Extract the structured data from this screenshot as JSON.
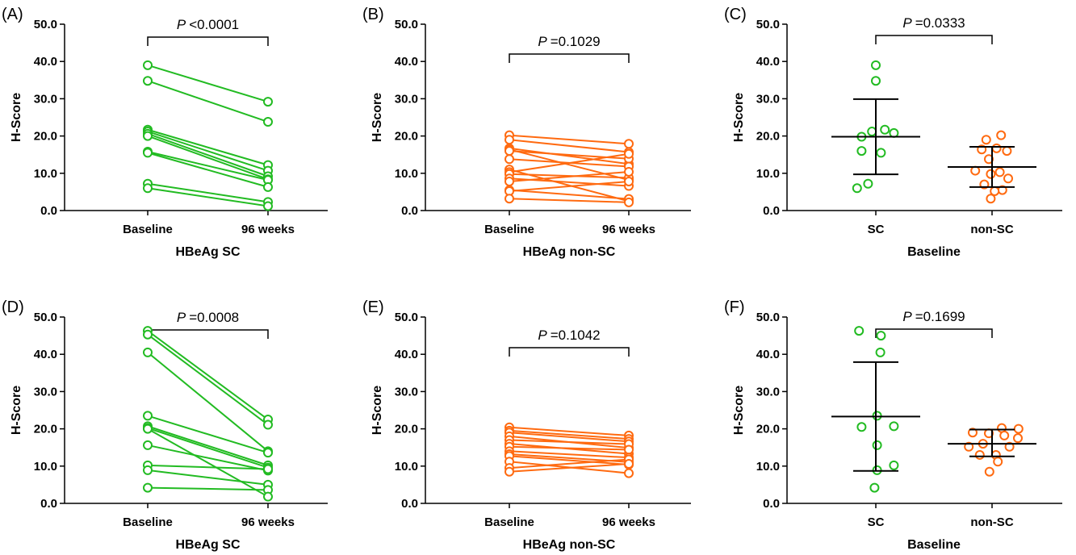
{
  "colors": {
    "sc": "#22bb22",
    "nonsc": "#ff6a10",
    "axis": "#000000"
  },
  "chart_data": [
    {
      "panel": "(A)",
      "type": "paired-line",
      "ylabel": "H-Score",
      "xlabel": "HBeAg SC",
      "ylim": [
        0,
        50
      ],
      "yticks": [
        "0.0",
        "10.0",
        "20.0",
        "30.0",
        "40.0",
        "50.0"
      ],
      "categories": [
        "Baseline",
        "96 weeks"
      ],
      "color": "sc",
      "p_label": "P",
      "p_value": "<0.0001",
      "pairs": [
        [
          39.0,
          29.2
        ],
        [
          34.8,
          23.8
        ],
        [
          21.7,
          12.2
        ],
        [
          21.2,
          10.7
        ],
        [
          20.6,
          9.2
        ],
        [
          20.0,
          8.4
        ],
        [
          15.8,
          8.2
        ],
        [
          15.5,
          6.3
        ],
        [
          7.2,
          2.3
        ],
        [
          6.0,
          1.2
        ]
      ]
    },
    {
      "panel": "(B)",
      "type": "paired-line",
      "ylabel": "H-Score",
      "xlabel": "HBeAg non-SC",
      "ylim": [
        0,
        50
      ],
      "yticks": [
        "0.0",
        "10.0",
        "20.0",
        "30.0",
        "40.0",
        "50.0"
      ],
      "categories": [
        "Baseline",
        "96 weeks"
      ],
      "color": "nonsc",
      "p_label": "P",
      "p_value": "=0.1029",
      "pairs": [
        [
          20.2,
          17.9
        ],
        [
          19.0,
          15.7
        ],
        [
          16.7,
          12.5
        ],
        [
          16.4,
          8.2
        ],
        [
          16.0,
          13.9
        ],
        [
          13.8,
          11.8
        ],
        [
          11.0,
          2.5
        ],
        [
          10.3,
          15.2
        ],
        [
          9.8,
          8.8
        ],
        [
          8.6,
          6.6
        ],
        [
          7.8,
          10.4
        ],
        [
          5.5,
          3.1
        ],
        [
          5.2,
          7.8
        ],
        [
          3.2,
          2.2
        ]
      ]
    },
    {
      "panel": "(C)",
      "type": "scatter-mean-sd",
      "ylabel": "H-Score",
      "xlabel": "Baseline",
      "ylim": [
        0,
        50
      ],
      "yticks": [
        "0.0",
        "10.0",
        "20.0",
        "30.0",
        "40.0",
        "50.0"
      ],
      "categories": [
        "SC",
        "non-SC"
      ],
      "p_label": "P",
      "p_value": "=0.0333",
      "groups": [
        {
          "color": "sc",
          "mean": 19.8,
          "sd_low": 9.7,
          "sd_high": 29.9,
          "points": [
            [
              0,
              39.0
            ],
            [
              0,
              34.8
            ],
            [
              -0.22,
              19.8
            ],
            [
              0.14,
              21.7
            ],
            [
              -0.06,
              21.2
            ],
            [
              0.28,
              20.8
            ],
            [
              -0.22,
              16.0
            ],
            [
              0.08,
              15.5
            ],
            [
              -0.12,
              7.2
            ],
            [
              -0.29,
              6.0
            ]
          ]
        },
        {
          "color": "nonsc",
          "mean": 11.7,
          "sd_low": 6.3,
          "sd_high": 17.1,
          "points": [
            [
              -0.09,
              19.0
            ],
            [
              0.14,
              20.2
            ],
            [
              0.07,
              16.7
            ],
            [
              -0.16,
              16.4
            ],
            [
              0.23,
              16.0
            ],
            [
              -0.05,
              13.8
            ],
            [
              -0.26,
              10.7
            ],
            [
              0.12,
              10.3
            ],
            [
              -0.02,
              9.8
            ],
            [
              0.25,
              8.6
            ],
            [
              -0.12,
              7.0
            ],
            [
              0.16,
              5.5
            ],
            [
              0.04,
              5.2
            ],
            [
              -0.02,
              3.2
            ]
          ]
        }
      ]
    },
    {
      "panel": "(D)",
      "type": "paired-line",
      "ylabel": "H-Score",
      "xlabel": "HBeAg SC",
      "ylim": [
        0,
        50
      ],
      "yticks": [
        "0.0",
        "10.0",
        "20.0",
        "30.0",
        "40.0",
        "50.0"
      ],
      "categories": [
        "Baseline",
        "96 weeks"
      ],
      "color": "sc",
      "p_label": "P",
      "p_value": "=0.0008",
      "pairs": [
        [
          46.3,
          22.5
        ],
        [
          45.3,
          21.1
        ],
        [
          40.5,
          14.0
        ],
        [
          23.5,
          13.6
        ],
        [
          20.7,
          10.2
        ],
        [
          20.2,
          9.6
        ],
        [
          15.6,
          8.8
        ],
        [
          10.2,
          9.2
        ],
        [
          8.9,
          5.0
        ],
        [
          4.2,
          3.6
        ],
        [
          20.0,
          1.8
        ]
      ]
    },
    {
      "panel": "(E)",
      "type": "paired-line",
      "ylabel": "H-Score",
      "xlabel": "HBeAg non-SC",
      "ylim": [
        0,
        50
      ],
      "yticks": [
        "0.0",
        "10.0",
        "20.0",
        "30.0",
        "40.0",
        "50.0"
      ],
      "categories": [
        "Baseline",
        "96 weeks"
      ],
      "color": "nonsc",
      "p_label": "P",
      "p_value": "=0.1042",
      "pairs": [
        [
          20.4,
          18.2
        ],
        [
          19.5,
          17.3
        ],
        [
          19.0,
          16.6
        ],
        [
          18.0,
          14.9
        ],
        [
          17.0,
          15.9
        ],
        [
          16.0,
          13.3
        ],
        [
          15.2,
          14.4
        ],
        [
          14.0,
          12.3
        ],
        [
          13.2,
          11.1
        ],
        [
          12.7,
          10.4
        ],
        [
          11.2,
          8.1
        ],
        [
          9.5,
          11.8
        ],
        [
          8.5,
          10.6
        ]
      ]
    },
    {
      "panel": "(F)",
      "type": "scatter-mean-sd",
      "ylabel": "H-Score",
      "xlabel": "Baseline",
      "ylim": [
        0,
        50
      ],
      "yticks": [
        "0.0",
        "10.0",
        "20.0",
        "30.0",
        "40.0",
        "50.0"
      ],
      "categories": [
        "SC",
        "non-SC"
      ],
      "p_label": "P",
      "p_value": "=0.1699",
      "groups": [
        {
          "color": "sc",
          "mean": 23.3,
          "sd_low": 8.7,
          "sd_high": 37.9,
          "points": [
            [
              -0.26,
              46.3
            ],
            [
              0.08,
              45.0
            ],
            [
              0.07,
              40.5
            ],
            [
              0.02,
              23.5
            ],
            [
              -0.22,
              20.5
            ],
            [
              0.28,
              20.7
            ],
            [
              0.02,
              15.6
            ],
            [
              0.28,
              10.2
            ],
            [
              0.02,
              8.9
            ],
            [
              -0.02,
              4.2
            ]
          ]
        },
        {
          "color": "nonsc",
          "mean": 16.0,
          "sd_low": 12.6,
          "sd_high": 19.8,
          "points": [
            [
              -0.3,
              19.0
            ],
            [
              0.15,
              20.2
            ],
            [
              0.41,
              20.0
            ],
            [
              -0.05,
              18.8
            ],
            [
              0.19,
              18.2
            ],
            [
              0.4,
              17.5
            ],
            [
              -0.14,
              16.0
            ],
            [
              -0.36,
              15.2
            ],
            [
              0.27,
              15.2
            ],
            [
              -0.19,
              13.0
            ],
            [
              0.06,
              13.0
            ],
            [
              0.09,
              11.2
            ],
            [
              -0.04,
              8.5
            ]
          ]
        }
      ]
    }
  ]
}
